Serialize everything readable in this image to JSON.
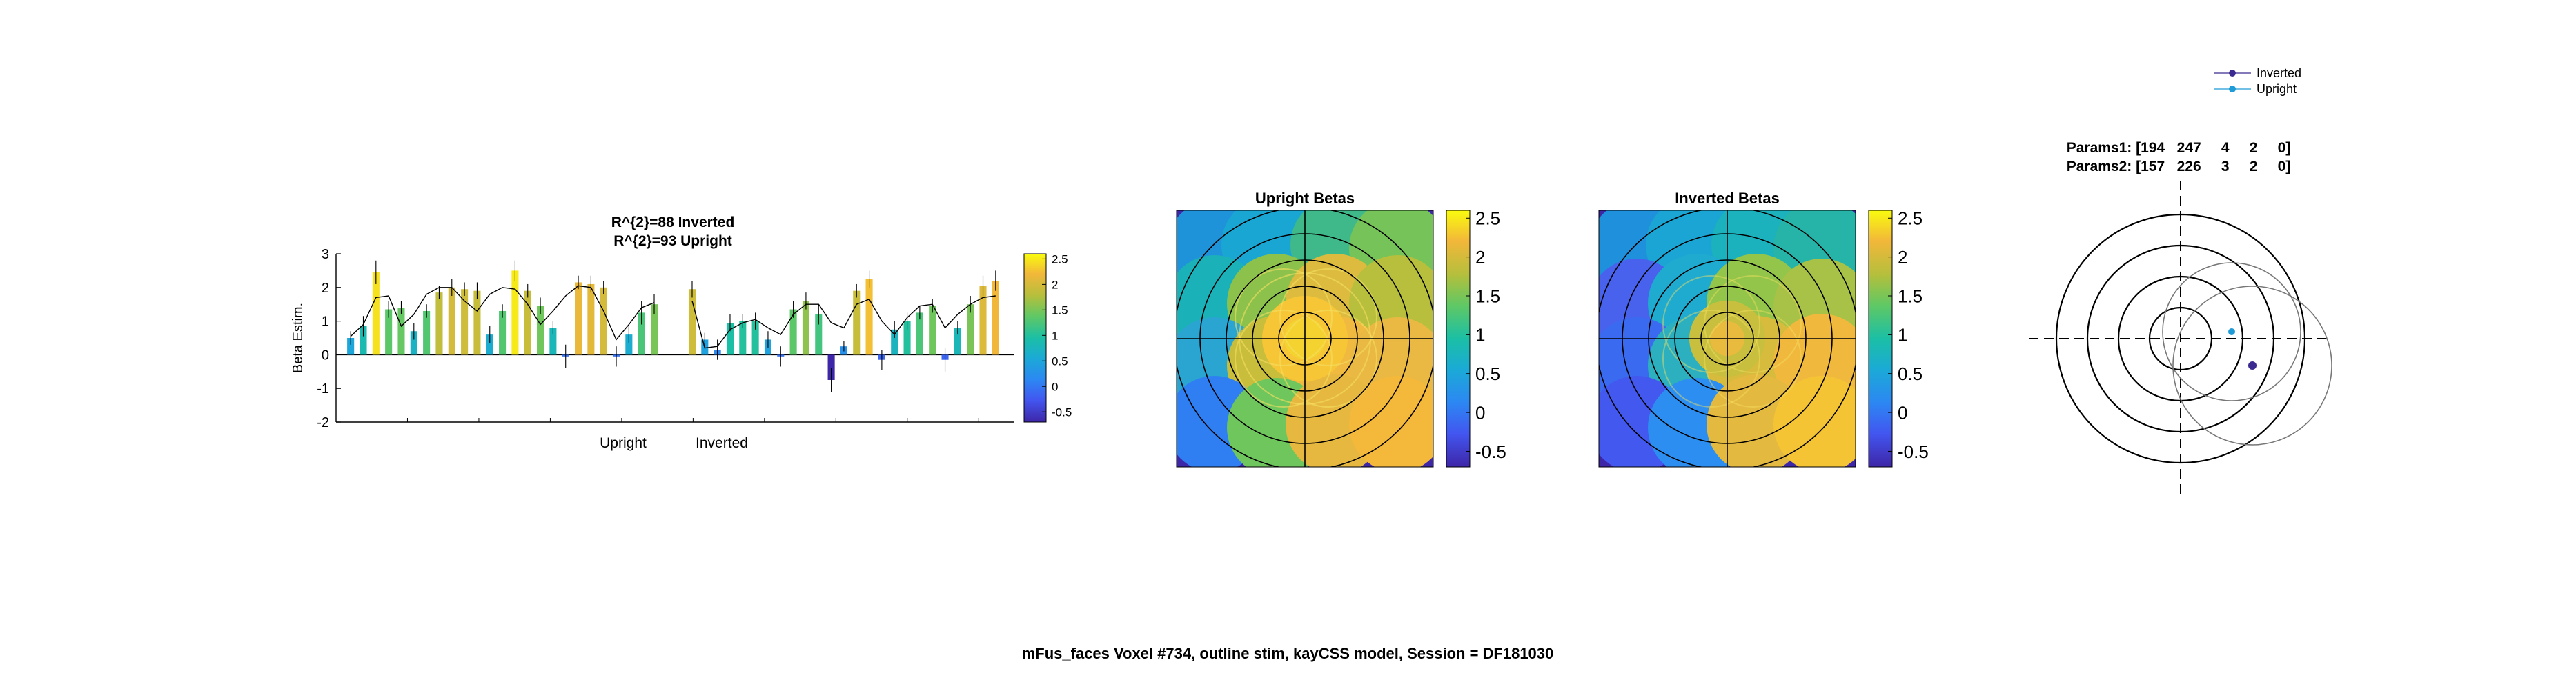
{
  "figure": {
    "suptitle": "mFus_faces Voxel #734, outline stim, kayCSS model, Session = DF181030"
  },
  "chart_data": [
    {
      "type": "bar",
      "title_lines": [
        "R^{2}=88 Inverted",
        "R^{2}=93 Upright"
      ],
      "ylabel": "Beta Estim.",
      "group_labels": [
        "Upright",
        "Inverted"
      ],
      "ylim": [
        -2,
        3
      ],
      "yticks": [
        -2,
        -1,
        0,
        1,
        2,
        3
      ],
      "colorbar": {
        "ticks": [
          2.5,
          2,
          1.5,
          1,
          0.5,
          0,
          -0.5
        ],
        "range": [
          -0.7,
          2.6
        ]
      },
      "values": [
        0.5,
        0.85,
        2.45,
        1.35,
        1.4,
        0.7,
        1.3,
        1.85,
        2.0,
        1.95,
        1.9,
        0.6,
        1.3,
        2.5,
        1.9,
        1.45,
        0.8,
        -0.05,
        2.15,
        2.1,
        2.0,
        -0.05,
        0.6,
        1.25,
        1.5,
        1.95,
        0.45,
        0.15,
        0.95,
        1.0,
        1.0,
        0.45,
        -0.05,
        1.35,
        1.6,
        1.2,
        -0.75,
        0.25,
        1.9,
        2.25,
        -0.15,
        0.75,
        1.0,
        1.25,
        1.45,
        -0.15,
        0.8,
        1.5,
        2.05,
        2.2
      ],
      "errors": [
        0.2,
        0.3,
        0.35,
        0.25,
        0.2,
        0.25,
        0.2,
        0.2,
        0.25,
        0.2,
        0.25,
        0.25,
        0.2,
        0.3,
        0.2,
        0.25,
        0.2,
        0.35,
        0.2,
        0.25,
        0.2,
        0.3,
        0.25,
        0.35,
        0.3,
        0.25,
        0.2,
        0.3,
        0.25,
        0.2,
        0.25,
        0.25,
        0.3,
        0.25,
        0.25,
        0.3,
        0.35,
        0.15,
        0.2,
        0.25,
        0.3,
        0.25,
        0.25,
        0.2,
        0.2,
        0.35,
        0.2,
        0.25,
        0.3,
        0.3
      ],
      "model_fit": [
        0.55,
        0.9,
        1.7,
        1.75,
        0.85,
        1.2,
        1.8,
        2.0,
        2.0,
        1.6,
        1.3,
        1.8,
        2.0,
        1.95,
        1.5,
        0.9,
        1.3,
        1.75,
        2.05,
        2.0,
        1.3,
        0.45,
        0.9,
        1.4,
        1.55,
        1.6,
        0.2,
        0.25,
        0.75,
        0.95,
        1.05,
        0.8,
        0.6,
        1.2,
        1.5,
        1.5,
        0.95,
        0.8,
        1.5,
        1.65,
        1.0,
        0.6,
        1.1,
        1.45,
        1.5,
        0.8,
        1.2,
        1.5,
        1.7,
        1.75
      ]
    },
    {
      "type": "heatmap",
      "title": "Upright Betas",
      "colorbar": {
        "ticks": [
          2.5,
          2,
          1.5,
          1,
          0.5,
          0,
          -0.5
        ],
        "range": [
          -0.7,
          2.6
        ]
      },
      "grid_on": true
    },
    {
      "type": "heatmap",
      "title": "Inverted Betas",
      "colorbar": {
        "ticks": [
          2.5,
          2,
          1.5,
          1,
          0.5,
          0,
          -0.5
        ],
        "range": [
          -0.7,
          2.6
        ]
      },
      "grid_on": true
    },
    {
      "type": "scatter",
      "params_lines": [
        "Params1: [194   247     4     2     0]",
        "Params2: [157   226     3     2     0]"
      ],
      "legend": [
        {
          "name": "Inverted",
          "color": "#3b2a8f"
        },
        {
          "name": "Upright",
          "color": "#1f9bd7"
        }
      ],
      "legend_position": "top-right",
      "points": [
        {
          "series": "Inverted",
          "x": 194,
          "y": 247,
          "size": 4
        },
        {
          "series": "Upright",
          "x": 157,
          "y": 226,
          "size": 3
        }
      ],
      "center": [
        128,
        128
      ]
    }
  ],
  "colors": {
    "bar_low": "#3e26a8",
    "bar_high": "#f9fb0e",
    "line": "#000000"
  }
}
